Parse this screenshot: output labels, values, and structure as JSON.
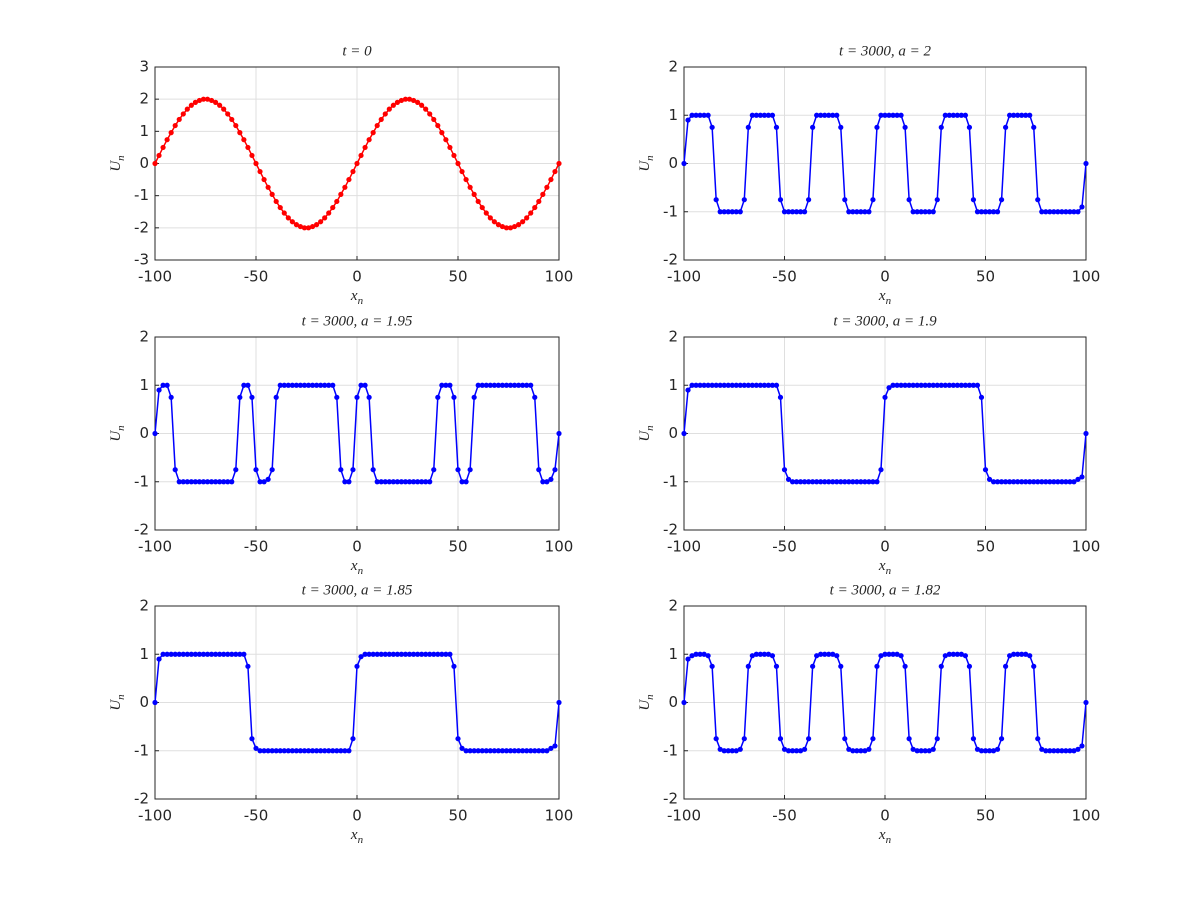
{
  "chart_data": [
    {
      "type": "line",
      "title": "t = 0",
      "xlabel": [
        "x",
        "n"
      ],
      "ylabel": [
        "U",
        "n"
      ],
      "color": "#ff0000",
      "grid": true,
      "xlim": [
        -100,
        100
      ],
      "xticks": [
        -100,
        -50,
        0,
        50,
        100
      ],
      "ylim": [
        -3,
        3
      ],
      "yticks": [
        -3,
        -2,
        -1,
        0,
        1,
        2,
        3
      ],
      "x": [
        -100,
        -98,
        -96,
        -94,
        -92,
        -90,
        -88,
        -86,
        -84,
        -82,
        -80,
        -78,
        -76,
        -74,
        -72,
        -70,
        -68,
        -66,
        -64,
        -62,
        -60,
        -58,
        -56,
        -54,
        -52,
        -50,
        -48,
        -46,
        -44,
        -42,
        -40,
        -38,
        -36,
        -34,
        -32,
        -30,
        -28,
        -26,
        -24,
        -22,
        -20,
        -18,
        -16,
        -14,
        -12,
        -10,
        -8,
        -6,
        -4,
        -2,
        0,
        2,
        4,
        6,
        8,
        10,
        12,
        14,
        16,
        18,
        20,
        22,
        24,
        26,
        28,
        30,
        32,
        34,
        36,
        38,
        40,
        42,
        44,
        46,
        48,
        50,
        52,
        54,
        56,
        58,
        60,
        62,
        64,
        66,
        68,
        70,
        72,
        74,
        76,
        78,
        80,
        82,
        84,
        86,
        88,
        90,
        92,
        94,
        96,
        98,
        100
      ],
      "values": [
        0,
        0.25,
        0.5,
        0.74,
        0.96,
        1.18,
        1.37,
        1.54,
        1.69,
        1.81,
        1.9,
        1.96,
        2,
        2,
        1.96,
        1.9,
        1.81,
        1.69,
        1.54,
        1.37,
        1.18,
        0.96,
        0.74,
        0.5,
        0.25,
        0,
        -0.25,
        -0.5,
        -0.74,
        -0.96,
        -1.18,
        -1.37,
        -1.54,
        -1.69,
        -1.81,
        -1.9,
        -1.96,
        -2,
        -2,
        -1.96,
        -1.9,
        -1.81,
        -1.69,
        -1.54,
        -1.37,
        -1.18,
        -0.96,
        -0.74,
        -0.5,
        -0.25,
        0,
        0.25,
        0.5,
        0.74,
        0.96,
        1.18,
        1.37,
        1.54,
        1.69,
        1.81,
        1.9,
        1.96,
        2,
        2,
        1.96,
        1.9,
        1.81,
        1.69,
        1.54,
        1.37,
        1.18,
        0.96,
        0.74,
        0.5,
        0.25,
        0,
        -0.25,
        -0.5,
        -0.74,
        -0.96,
        -1.18,
        -1.37,
        -1.54,
        -1.69,
        -1.81,
        -1.9,
        -1.96,
        -2,
        -2,
        -1.96,
        -1.9,
        -1.81,
        -1.69,
        -1.54,
        -1.37,
        -1.18,
        -0.96,
        -0.74,
        -0.5,
        -0.25,
        0
      ]
    },
    {
      "type": "line",
      "title": "t = 3000, a = 2",
      "xlabel": [
        "x",
        "n"
      ],
      "ylabel": [
        "U",
        "n"
      ],
      "color": "#0000ff",
      "grid": true,
      "xlim": [
        -100,
        100
      ],
      "xticks": [
        -100,
        -50,
        0,
        50,
        100
      ],
      "ylim": [
        -2,
        2
      ],
      "yticks": [
        -2,
        -1,
        0,
        1,
        2
      ],
      "x": [
        -100,
        -98,
        -96,
        -94,
        -92,
        -90,
        -88,
        -86,
        -84,
        -82,
        -80,
        -78,
        -76,
        -74,
        -72,
        -70,
        -68,
        -66,
        -64,
        -62,
        -60,
        -58,
        -56,
        -54,
        -52,
        -50,
        -48,
        -46,
        -44,
        -42,
        -40,
        -38,
        -36,
        -34,
        -32,
        -30,
        -28,
        -26,
        -24,
        -22,
        -20,
        -18,
        -16,
        -14,
        -12,
        -10,
        -8,
        -6,
        -4,
        -2,
        0,
        2,
        4,
        6,
        8,
        10,
        12,
        14,
        16,
        18,
        20,
        22,
        24,
        26,
        28,
        30,
        32,
        34,
        36,
        38,
        40,
        42,
        44,
        46,
        48,
        50,
        52,
        54,
        56,
        58,
        60,
        62,
        64,
        66,
        68,
        70,
        72,
        74,
        76,
        78,
        80,
        82,
        84,
        86,
        88,
        90,
        92,
        94,
        96,
        98,
        100
      ],
      "values": [
        0,
        0.9,
        1,
        1,
        1,
        1,
        1,
        0.75,
        -0.75,
        -1,
        -1,
        -1,
        -1,
        -1,
        -1,
        -0.75,
        0.75,
        1,
        1,
        1,
        1,
        1,
        1,
        0.75,
        -0.75,
        -1,
        -1,
        -1,
        -1,
        -1,
        -1,
        -0.75,
        0.75,
        1,
        1,
        1,
        1,
        1,
        1,
        0.75,
        -0.75,
        -1,
        -1,
        -1,
        -1,
        -1,
        -1,
        -0.75,
        0.75,
        1,
        1,
        1,
        1,
        1,
        1,
        0.75,
        -0.75,
        -1,
        -1,
        -1,
        -1,
        -1,
        -1,
        -0.75,
        0.75,
        1,
        1,
        1,
        1,
        1,
        1,
        0.75,
        -0.75,
        -1,
        -1,
        -1,
        -1,
        -1,
        -1,
        -0.75,
        0.75,
        1,
        1,
        1,
        1,
        1,
        1,
        0.75,
        -0.75,
        -1,
        -1,
        -1,
        -1,
        -1,
        -1,
        -1,
        -1,
        -1,
        -1,
        -0.9,
        0
      ]
    },
    {
      "type": "line",
      "title": "t = 3000, a = 1.95",
      "xlabel": [
        "x",
        "n"
      ],
      "ylabel": [
        "U",
        "n"
      ],
      "color": "#0000ff",
      "grid": true,
      "xlim": [
        -100,
        100
      ],
      "xticks": [
        -100,
        -50,
        0,
        50,
        100
      ],
      "ylim": [
        -2,
        2
      ],
      "yticks": [
        -2,
        -1,
        0,
        1,
        2
      ],
      "x": [
        -100,
        -98,
        -96,
        -94,
        -92,
        -90,
        -88,
        -86,
        -84,
        -82,
        -80,
        -78,
        -76,
        -74,
        -72,
        -70,
        -68,
        -66,
        -64,
        -62,
        -60,
        -58,
        -56,
        -54,
        -52,
        -50,
        -48,
        -46,
        -44,
        -42,
        -40,
        -38,
        -36,
        -34,
        -32,
        -30,
        -28,
        -26,
        -24,
        -22,
        -20,
        -18,
        -16,
        -14,
        -12,
        -10,
        -8,
        -6,
        -4,
        -2,
        0,
        2,
        4,
        6,
        8,
        10,
        12,
        14,
        16,
        18,
        20,
        22,
        24,
        26,
        28,
        30,
        32,
        34,
        36,
        38,
        40,
        42,
        44,
        46,
        48,
        50,
        52,
        54,
        56,
        58,
        60,
        62,
        64,
        66,
        68,
        70,
        72,
        74,
        76,
        78,
        80,
        82,
        84,
        86,
        88,
        90,
        92,
        94,
        96,
        98,
        100
      ],
      "values": [
        0,
        0.9,
        1,
        1,
        0.75,
        -0.75,
        -1,
        -1,
        -1,
        -1,
        -1,
        -1,
        -1,
        -1,
        -1,
        -1,
        -1,
        -1,
        -1,
        -1,
        -0.75,
        0.75,
        1,
        1,
        0.75,
        -0.75,
        -1,
        -1,
        -0.95,
        -0.75,
        0.75,
        1,
        1,
        1,
        1,
        1,
        1,
        1,
        1,
        1,
        1,
        1,
        1,
        1,
        1,
        0.75,
        -0.75,
        -1,
        -1,
        -0.75,
        0.75,
        1,
        1,
        0.75,
        -0.75,
        -1,
        -1,
        -1,
        -1,
        -1,
        -1,
        -1,
        -1,
        -1,
        -1,
        -1,
        -1,
        -1,
        -1,
        -0.75,
        0.75,
        1,
        1,
        1,
        0.75,
        -0.75,
        -1,
        -1,
        -0.75,
        0.75,
        1,
        1,
        1,
        1,
        1,
        1,
        1,
        1,
        1,
        1,
        1,
        1,
        1,
        1,
        0.75,
        -0.75,
        -1,
        -1,
        -0.95,
        -0.75,
        0
      ]
    },
    {
      "type": "line",
      "title": "t = 3000, a = 1.9",
      "xlabel": [
        "x",
        "n"
      ],
      "ylabel": [
        "U",
        "n"
      ],
      "color": "#0000ff",
      "grid": true,
      "xlim": [
        -100,
        100
      ],
      "xticks": [
        -100,
        -50,
        0,
        50,
        100
      ],
      "ylim": [
        -2,
        2
      ],
      "yticks": [
        -2,
        -1,
        0,
        1,
        2
      ],
      "x": [
        -100,
        -98,
        -96,
        -94,
        -92,
        -90,
        -88,
        -86,
        -84,
        -82,
        -80,
        -78,
        -76,
        -74,
        -72,
        -70,
        -68,
        -66,
        -64,
        -62,
        -60,
        -58,
        -56,
        -54,
        -52,
        -50,
        -48,
        -46,
        -44,
        -42,
        -40,
        -38,
        -36,
        -34,
        -32,
        -30,
        -28,
        -26,
        -24,
        -22,
        -20,
        -18,
        -16,
        -14,
        -12,
        -10,
        -8,
        -6,
        -4,
        -2,
        0,
        2,
        4,
        6,
        8,
        10,
        12,
        14,
        16,
        18,
        20,
        22,
        24,
        26,
        28,
        30,
        32,
        34,
        36,
        38,
        40,
        42,
        44,
        46,
        48,
        50,
        52,
        54,
        56,
        58,
        60,
        62,
        64,
        66,
        68,
        70,
        72,
        74,
        76,
        78,
        80,
        82,
        84,
        86,
        88,
        90,
        92,
        94,
        96,
        98,
        100
      ],
      "values": [
        0,
        0.9,
        1,
        1,
        1,
        1,
        1,
        1,
        1,
        1,
        1,
        1,
        1,
        1,
        1,
        1,
        1,
        1,
        1,
        1,
        1,
        1,
        1,
        1,
        0.75,
        -0.75,
        -0.95,
        -1,
        -1,
        -1,
        -1,
        -1,
        -1,
        -1,
        -1,
        -1,
        -1,
        -1,
        -1,
        -1,
        -1,
        -1,
        -1,
        -1,
        -1,
        -1,
        -1,
        -1,
        -1,
        -0.75,
        0.75,
        0.95,
        1,
        1,
        1,
        1,
        1,
        1,
        1,
        1,
        1,
        1,
        1,
        1,
        1,
        1,
        1,
        1,
        1,
        1,
        1,
        1,
        1,
        1,
        0.75,
        -0.75,
        -0.95,
        -1,
        -1,
        -1,
        -1,
        -1,
        -1,
        -1,
        -1,
        -1,
        -1,
        -1,
        -1,
        -1,
        -1,
        -1,
        -1,
        -1,
        -1,
        -1,
        -1,
        -1,
        -0.95,
        -0.9,
        0
      ]
    },
    {
      "type": "line",
      "title": "t = 3000, a = 1.85",
      "xlabel": [
        "x",
        "n"
      ],
      "ylabel": [
        "U",
        "n"
      ],
      "color": "#0000ff",
      "grid": true,
      "xlim": [
        -100,
        100
      ],
      "xticks": [
        -100,
        -50,
        0,
        50,
        100
      ],
      "ylim": [
        -2,
        2
      ],
      "yticks": [
        -2,
        -1,
        0,
        1,
        2
      ],
      "x": [
        -100,
        -98,
        -96,
        -94,
        -92,
        -90,
        -88,
        -86,
        -84,
        -82,
        -80,
        -78,
        -76,
        -74,
        -72,
        -70,
        -68,
        -66,
        -64,
        -62,
        -60,
        -58,
        -56,
        -54,
        -52,
        -50,
        -48,
        -46,
        -44,
        -42,
        -40,
        -38,
        -36,
        -34,
        -32,
        -30,
        -28,
        -26,
        -24,
        -22,
        -20,
        -18,
        -16,
        -14,
        -12,
        -10,
        -8,
        -6,
        -4,
        -2,
        0,
        2,
        4,
        6,
        8,
        10,
        12,
        14,
        16,
        18,
        20,
        22,
        24,
        26,
        28,
        30,
        32,
        34,
        36,
        38,
        40,
        42,
        44,
        46,
        48,
        50,
        52,
        54,
        56,
        58,
        60,
        62,
        64,
        66,
        68,
        70,
        72,
        74,
        76,
        78,
        80,
        82,
        84,
        86,
        88,
        90,
        92,
        94,
        96,
        98,
        100
      ],
      "values": [
        0,
        0.9,
        1,
        1,
        1,
        1,
        1,
        1,
        1,
        1,
        1,
        1,
        1,
        1,
        1,
        1,
        1,
        1,
        1,
        1,
        1,
        1,
        1,
        0.75,
        -0.75,
        -0.95,
        -1,
        -1,
        -1,
        -1,
        -1,
        -1,
        -1,
        -1,
        -1,
        -1,
        -1,
        -1,
        -1,
        -1,
        -1,
        -1,
        -1,
        -1,
        -1,
        -1,
        -1,
        -1,
        -1,
        -0.75,
        0.75,
        0.95,
        1,
        1,
        1,
        1,
        1,
        1,
        1,
        1,
        1,
        1,
        1,
        1,
        1,
        1,
        1,
        1,
        1,
        1,
        1,
        1,
        1,
        1,
        0.75,
        -0.75,
        -0.95,
        -1,
        -1,
        -1,
        -1,
        -1,
        -1,
        -1,
        -1,
        -1,
        -1,
        -1,
        -1,
        -1,
        -1,
        -1,
        -1,
        -1,
        -1,
        -1,
        -1,
        -1,
        -0.95,
        -0.9,
        0
      ]
    },
    {
      "type": "line",
      "title": "t = 3000, a = 1.82",
      "xlabel": [
        "x",
        "n"
      ],
      "ylabel": [
        "U",
        "n"
      ],
      "color": "#0000ff",
      "grid": true,
      "xlim": [
        -100,
        100
      ],
      "xticks": [
        -100,
        -50,
        0,
        50,
        100
      ],
      "ylim": [
        -2,
        2
      ],
      "yticks": [
        -2,
        -1,
        0,
        1,
        2
      ],
      "x": [
        -100,
        -98,
        -96,
        -94,
        -92,
        -90,
        -88,
        -86,
        -84,
        -82,
        -80,
        -78,
        -76,
        -74,
        -72,
        -70,
        -68,
        -66,
        -64,
        -62,
        -60,
        -58,
        -56,
        -54,
        -52,
        -50,
        -48,
        -46,
        -44,
        -42,
        -40,
        -38,
        -36,
        -34,
        -32,
        -30,
        -28,
        -26,
        -24,
        -22,
        -20,
        -18,
        -16,
        -14,
        -12,
        -10,
        -8,
        -6,
        -4,
        -2,
        0,
        2,
        4,
        6,
        8,
        10,
        12,
        14,
        16,
        18,
        20,
        22,
        24,
        26,
        28,
        30,
        32,
        34,
        36,
        38,
        40,
        42,
        44,
        46,
        48,
        50,
        52,
        54,
        56,
        58,
        60,
        62,
        64,
        66,
        68,
        70,
        72,
        74,
        76,
        78,
        80,
        82,
        84,
        86,
        88,
        90,
        92,
        94,
        96,
        98,
        100
      ],
      "values": [
        0,
        0.9,
        0.97,
        1,
        1,
        1,
        0.97,
        0.75,
        -0.75,
        -0.97,
        -1,
        -1,
        -1,
        -1,
        -0.97,
        -0.75,
        0.75,
        0.97,
        1,
        1,
        1,
        1,
        0.97,
        0.75,
        -0.75,
        -0.97,
        -1,
        -1,
        -1,
        -1,
        -0.97,
        -0.75,
        0.75,
        0.97,
        1,
        1,
        1,
        1,
        0.97,
        0.75,
        -0.75,
        -0.97,
        -1,
        -1,
        -1,
        -1,
        -0.97,
        -0.75,
        0.75,
        0.97,
        1,
        1,
        1,
        1,
        0.97,
        0.75,
        -0.75,
        -0.97,
        -1,
        -1,
        -1,
        -1,
        -0.97,
        -0.75,
        0.75,
        0.97,
        1,
        1,
        1,
        1,
        0.97,
        0.75,
        -0.75,
        -0.97,
        -1,
        -1,
        -1,
        -1,
        -0.97,
        -0.75,
        0.75,
        0.97,
        1,
        1,
        1,
        1,
        0.97,
        0.75,
        -0.75,
        -0.97,
        -1,
        -1,
        -1,
        -1,
        -1,
        -1,
        -1,
        -1,
        -0.97,
        -0.9,
        0
      ]
    }
  ]
}
